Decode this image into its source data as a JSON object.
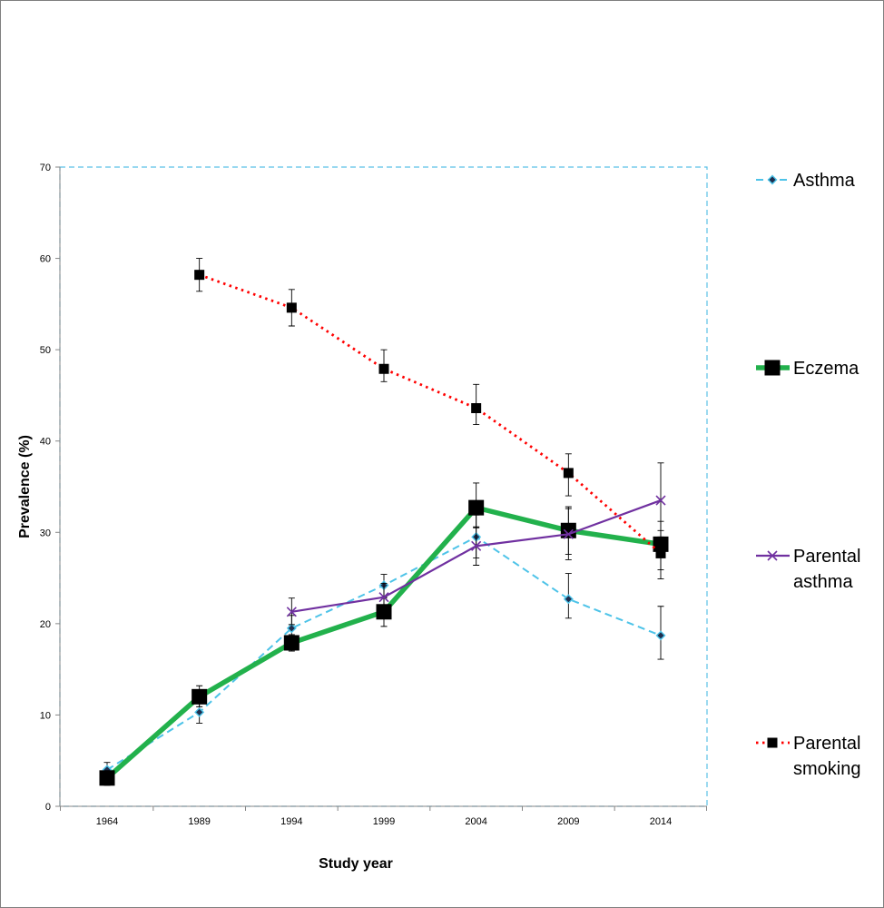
{
  "chart_data": {
    "type": "line",
    "title": "",
    "xlabel": "Study year",
    "ylabel": "Prevalence (%)",
    "categories": [
      "1964",
      "1989",
      "1994",
      "1999",
      "2004",
      "2009",
      "2014"
    ],
    "ylim": [
      0,
      70
    ],
    "yticks": [
      0,
      10,
      20,
      30,
      40,
      50,
      60,
      70
    ],
    "grid": false,
    "legend_position": "right",
    "series": [
      {
        "name": "Asthma",
        "label_lines": [
          "Asthma"
        ],
        "style": "dashed",
        "marker": "diamond",
        "color": "#4dc3e8",
        "values": [
          4.0,
          10.3,
          19.5,
          24.2,
          29.5,
          22.7,
          18.7
        ],
        "err_low": [
          3.3,
          9.1,
          18.2,
          22.9,
          27.2,
          20.6,
          16.1
        ],
        "err_high": [
          4.8,
          11.6,
          20.9,
          25.4,
          31.9,
          25.5,
          21.9
        ]
      },
      {
        "name": "Eczema",
        "label_lines": [
          "Eczema"
        ],
        "style": "solid-thick",
        "marker": "square-large",
        "color": "#22b14c",
        "values": [
          3.1,
          12.0,
          17.9,
          21.3,
          32.7,
          30.2,
          28.7
        ],
        "err_low": [
          2.3,
          10.9,
          17.0,
          19.7,
          30.5,
          27.6,
          25.9
        ],
        "err_high": [
          3.9,
          13.2,
          18.8,
          22.8,
          35.4,
          32.8,
          31.2
        ]
      },
      {
        "name": "Parental asthma",
        "label_lines": [
          "Parental",
          "asthma"
        ],
        "style": "solid",
        "marker": "x",
        "color": "#7030a0",
        "values": [
          null,
          null,
          21.3,
          22.9,
          28.5,
          29.8,
          33.5
        ],
        "err_low": [
          null,
          null,
          19.9,
          21.4,
          26.4,
          27.0,
          29.5
        ],
        "err_high": [
          null,
          null,
          22.8,
          24.4,
          30.6,
          32.6,
          37.6
        ]
      },
      {
        "name": "Parental smoking",
        "label_lines": [
          "Parental",
          "smoking"
        ],
        "style": "dotted",
        "marker": "square",
        "color": "#ff0000",
        "values": [
          null,
          58.2,
          54.6,
          47.9,
          43.6,
          36.5,
          27.7
        ],
        "err_low": [
          null,
          56.4,
          52.6,
          46.5,
          41.8,
          34.0,
          24.9
        ],
        "err_high": [
          null,
          60.0,
          56.6,
          50.0,
          46.2,
          38.6,
          30.2
        ]
      }
    ]
  }
}
